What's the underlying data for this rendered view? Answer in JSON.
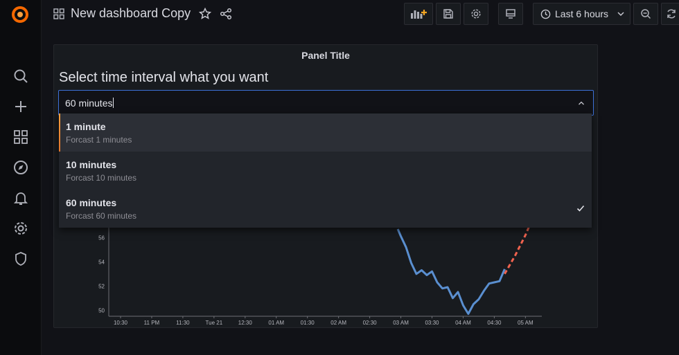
{
  "header": {
    "title": "New dashboard Copy",
    "time_range": "Last 6 hours"
  },
  "panel": {
    "title": "Panel Title",
    "question": "Select time interval what you want"
  },
  "select": {
    "value": "60 minutes",
    "options": [
      {
        "label": "1 minute",
        "description": "Forcast 1 minutes",
        "active": true
      },
      {
        "label": "10 minutes",
        "description": "Forcast 10 minutes",
        "active": false
      },
      {
        "label": "60 minutes",
        "description": "Forcast 60 minutes",
        "selected": true
      }
    ]
  },
  "chart_data": {
    "type": "line",
    "title": "",
    "x_ticks": [
      "10:30",
      "11 PM",
      "11:30",
      "Tue 21",
      "12:30",
      "01 AM",
      "01:30",
      "02 AM",
      "02:30",
      "03 AM",
      "03:30",
      "04 AM",
      "04:30",
      "05 AM"
    ],
    "y_ticks": [
      50,
      52,
      54,
      56
    ],
    "ylim": [
      49.5,
      57.5
    ],
    "series": [
      {
        "color": "#5a8fd0",
        "style": "solid",
        "x": [
          "02:57",
          "03:00",
          "03:05",
          "03:10",
          "03:15",
          "03:20",
          "03:25",
          "03:30",
          "03:35",
          "03:40",
          "03:45",
          "03:50",
          "03:55",
          "04:00",
          "04:05",
          "04:10",
          "04:15",
          "04:20",
          "04:25",
          "04:30",
          "04:35",
          "04:40"
        ],
        "values": [
          56.7,
          56.1,
          55.2,
          53.9,
          53.0,
          53.3,
          52.9,
          53.2,
          52.3,
          51.8,
          51.9,
          51.0,
          51.5,
          50.4,
          49.7,
          50.5,
          50.9,
          51.6,
          52.2,
          52.3,
          52.4,
          53.4
        ]
      },
      {
        "color": "#f2634f",
        "style": "dashed",
        "x": [
          "04:40",
          "04:50",
          "05:00",
          "05:05"
        ],
        "values": [
          53.0,
          54.5,
          56.2,
          57.2
        ]
      }
    ]
  },
  "colors": {
    "accent": "#3d71d9",
    "forecast": "#f2634f",
    "series": "#5a8fd0"
  }
}
